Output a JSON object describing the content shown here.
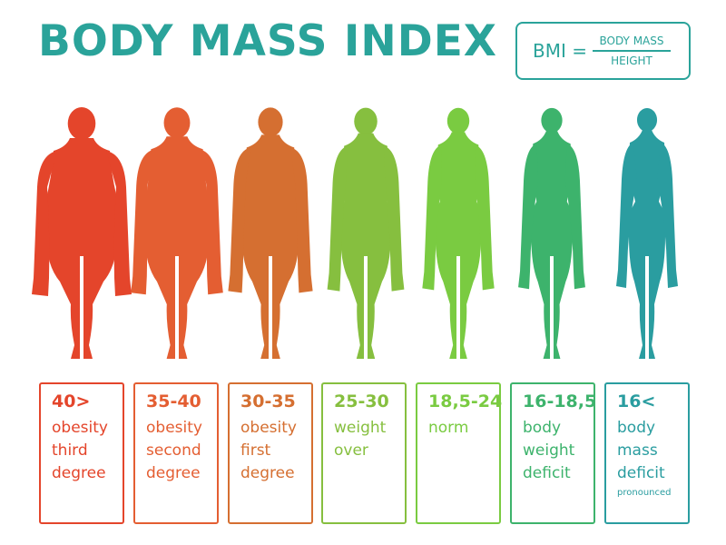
{
  "title": "BODY MASS INDEX",
  "formula": {
    "lhs": "BMI =",
    "numerator": "BODY MASS",
    "denominator": "HEIGHT"
  },
  "categories": [
    {
      "range": "40>",
      "desc": "obesity\nthird\ndegree",
      "note": "",
      "color": "#e4452b",
      "build": 1.0
    },
    {
      "range": "35-40",
      "desc": "obesity\nsecond\ndegree",
      "note": "",
      "color": "#e45e32",
      "build": 0.8
    },
    {
      "range": "30-35",
      "desc": "obesity\nfirst\ndegree",
      "note": "",
      "color": "#d56f31",
      "build": 0.6
    },
    {
      "range": "25-30",
      "desc": "weight\nover",
      "note": "",
      "color": "#86bf3f",
      "build": 0.4
    },
    {
      "range": "18,5-24",
      "desc": "norm",
      "note": "",
      "color": "#7acb41",
      "build": 0.27
    },
    {
      "range": "16-18,5",
      "desc": "body\nweight\ndeficit",
      "note": "",
      "color": "#3db36c",
      "build": 0.14
    },
    {
      "range": "16<",
      "desc": "body\nmass\ndeficit",
      "note": "pronounced",
      "color": "#2a9da0",
      "build": 0.0
    }
  ]
}
